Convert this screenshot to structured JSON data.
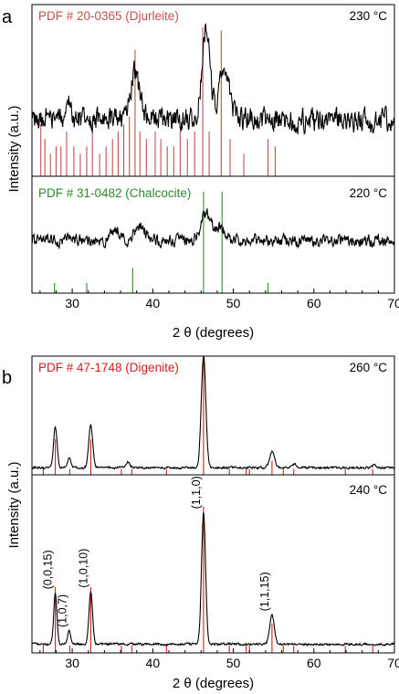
{
  "chart_data": [
    {
      "type": "line",
      "panel_label": "a",
      "xlabel": "2 θ (degrees)",
      "ylabel": "Intensity (a.u.)",
      "xlim": [
        25,
        70
      ],
      "x_ticks": [
        30,
        40,
        50,
        60,
        70
      ],
      "subplots": [
        {
          "temperature": "230 °C",
          "reference": {
            "label": "PDF # 20-0365 (Djurleite)",
            "color": "#c0504d",
            "x": [
              26.1,
              26.6,
              27.3,
              28.0,
              28.6,
              29.3,
              30.2,
              31.0,
              31.8,
              32.5,
              33.4,
              34.2,
              35.0,
              35.7,
              36.4,
              37.1,
              37.8,
              38.4,
              39.2,
              40.3,
              41.0,
              41.8,
              42.6,
              43.4,
              44.3,
              45.2,
              46.2,
              47.0,
              48.5,
              49.6,
              51.3,
              54.3,
              55.2
            ],
            "intensity": [
              0.35,
              0.25,
              0.15,
              0.2,
              0.2,
              0.3,
              0.2,
              0.15,
              0.2,
              0.3,
              0.15,
              0.2,
              0.25,
              0.3,
              0.35,
              0.4,
              0.85,
              0.3,
              0.25,
              0.3,
              0.25,
              0.2,
              0.2,
              0.3,
              0.25,
              0.3,
              1.0,
              0.3,
              0.98,
              0.25,
              0.15,
              0.25,
              0.2
            ]
          },
          "pattern": {
            "baseline": 0.38,
            "noise": 0.12,
            "peaks": [
              {
                "x": 37.8,
                "h": 0.32,
                "w": 0.55
              },
              {
                "x": 46.6,
                "h": 0.62,
                "w": 0.5
              },
              {
                "x": 48.9,
                "h": 0.38,
                "w": 0.6
              },
              {
                "x": 29.5,
                "h": 0.1,
                "w": 0.5
              }
            ]
          }
        },
        {
          "temperature": "220 °C",
          "reference": {
            "label": "PDF # 31-0482 (Chalcocite)",
            "color": "#2e8b2e",
            "x": [
              27.8,
              31.8,
              37.5,
              46.3,
              48.6,
              54.3
            ],
            "intensity": [
              0.1,
              0.1,
              0.25,
              1.0,
              1.0,
              0.1
            ]
          },
          "pattern": {
            "baseline": 0.52,
            "noise": 0.09,
            "peaks": [
              {
                "x": 35.4,
                "h": 0.12,
                "w": 0.5
              },
              {
                "x": 38.5,
                "h": 0.14,
                "w": 0.6
              },
              {
                "x": 46.6,
                "h": 0.28,
                "w": 0.6
              },
              {
                "x": 48.3,
                "h": 0.14,
                "w": 0.5
              }
            ]
          }
        }
      ]
    },
    {
      "type": "line",
      "panel_label": "b",
      "xlabel": "2 θ (degrees)",
      "ylabel": "Intensity (a.u.)",
      "xlim": [
        25,
        70
      ],
      "x_ticks": [
        30,
        40,
        50,
        60,
        70
      ],
      "subplots": [
        {
          "temperature": "260 °C",
          "reference": {
            "label": "PDF # 47-1748 (Digenite)",
            "color": "#d02020",
            "x": [
              26.4,
              27.9,
              29.7,
              32.3,
              36.1,
              37.4,
              41.7,
              46.3,
              49.5,
              51.6,
              52.0,
              54.8,
              56.2,
              57.5,
              63.9,
              67.3
            ],
            "intensity": [
              0.05,
              0.3,
              0.05,
              0.3,
              0.05,
              0.05,
              0.05,
              1.0,
              0.05,
              0.05,
              0.05,
              0.12,
              0.05,
              0.05,
              0.05,
              0.05
            ]
          },
          "pattern": {
            "baseline": 0.06,
            "noise": 0.015,
            "peaks": [
              {
                "x": 27.9,
                "h": 0.34,
                "w": 0.22
              },
              {
                "x": 29.6,
                "h": 0.08,
                "w": 0.22
              },
              {
                "x": 32.3,
                "h": 0.36,
                "w": 0.25
              },
              {
                "x": 36.9,
                "h": 0.05,
                "w": 0.25
              },
              {
                "x": 46.3,
                "h": 0.95,
                "w": 0.28
              },
              {
                "x": 54.8,
                "h": 0.14,
                "w": 0.3
              },
              {
                "x": 57.6,
                "h": 0.03,
                "w": 0.3
              },
              {
                "x": 67.5,
                "h": 0.02,
                "w": 0.3
              }
            ]
          }
        },
        {
          "temperature": "240 °C",
          "reference": {
            "color": "#d02020",
            "x": [
              26.4,
              27.9,
              29.7,
              32.3,
              36.1,
              37.4,
              41.7,
              46.3,
              49.5,
              51.6,
              52.0,
              54.8,
              56.2,
              57.5,
              63.9,
              67.3
            ],
            "intensity": [
              0.05,
              0.45,
              0.05,
              0.45,
              0.05,
              0.05,
              0.05,
              1.0,
              0.05,
              0.05,
              0.05,
              0.2,
              0.05,
              0.05,
              0.05,
              0.05
            ]
          },
          "pattern": {
            "baseline": 0.06,
            "noise": 0.012,
            "peaks": [
              {
                "x": 27.9,
                "h": 0.35,
                "w": 0.2
              },
              {
                "x": 29.6,
                "h": 0.09,
                "w": 0.2
              },
              {
                "x": 32.3,
                "h": 0.36,
                "w": 0.22
              },
              {
                "x": 46.3,
                "h": 0.9,
                "w": 0.25
              },
              {
                "x": 54.8,
                "h": 0.2,
                "w": 0.28
              }
            ]
          },
          "annotations": [
            {
              "text": "(0,0,15)",
              "x": 27.9
            },
            {
              "text": "(1,0,7)",
              "x": 29.7
            },
            {
              "text": "(1,0,10)",
              "x": 32.3
            },
            {
              "text": "(1,1,0)",
              "x": 46.3
            },
            {
              "text": "(1,1,15)",
              "x": 54.8
            }
          ]
        }
      ]
    }
  ]
}
